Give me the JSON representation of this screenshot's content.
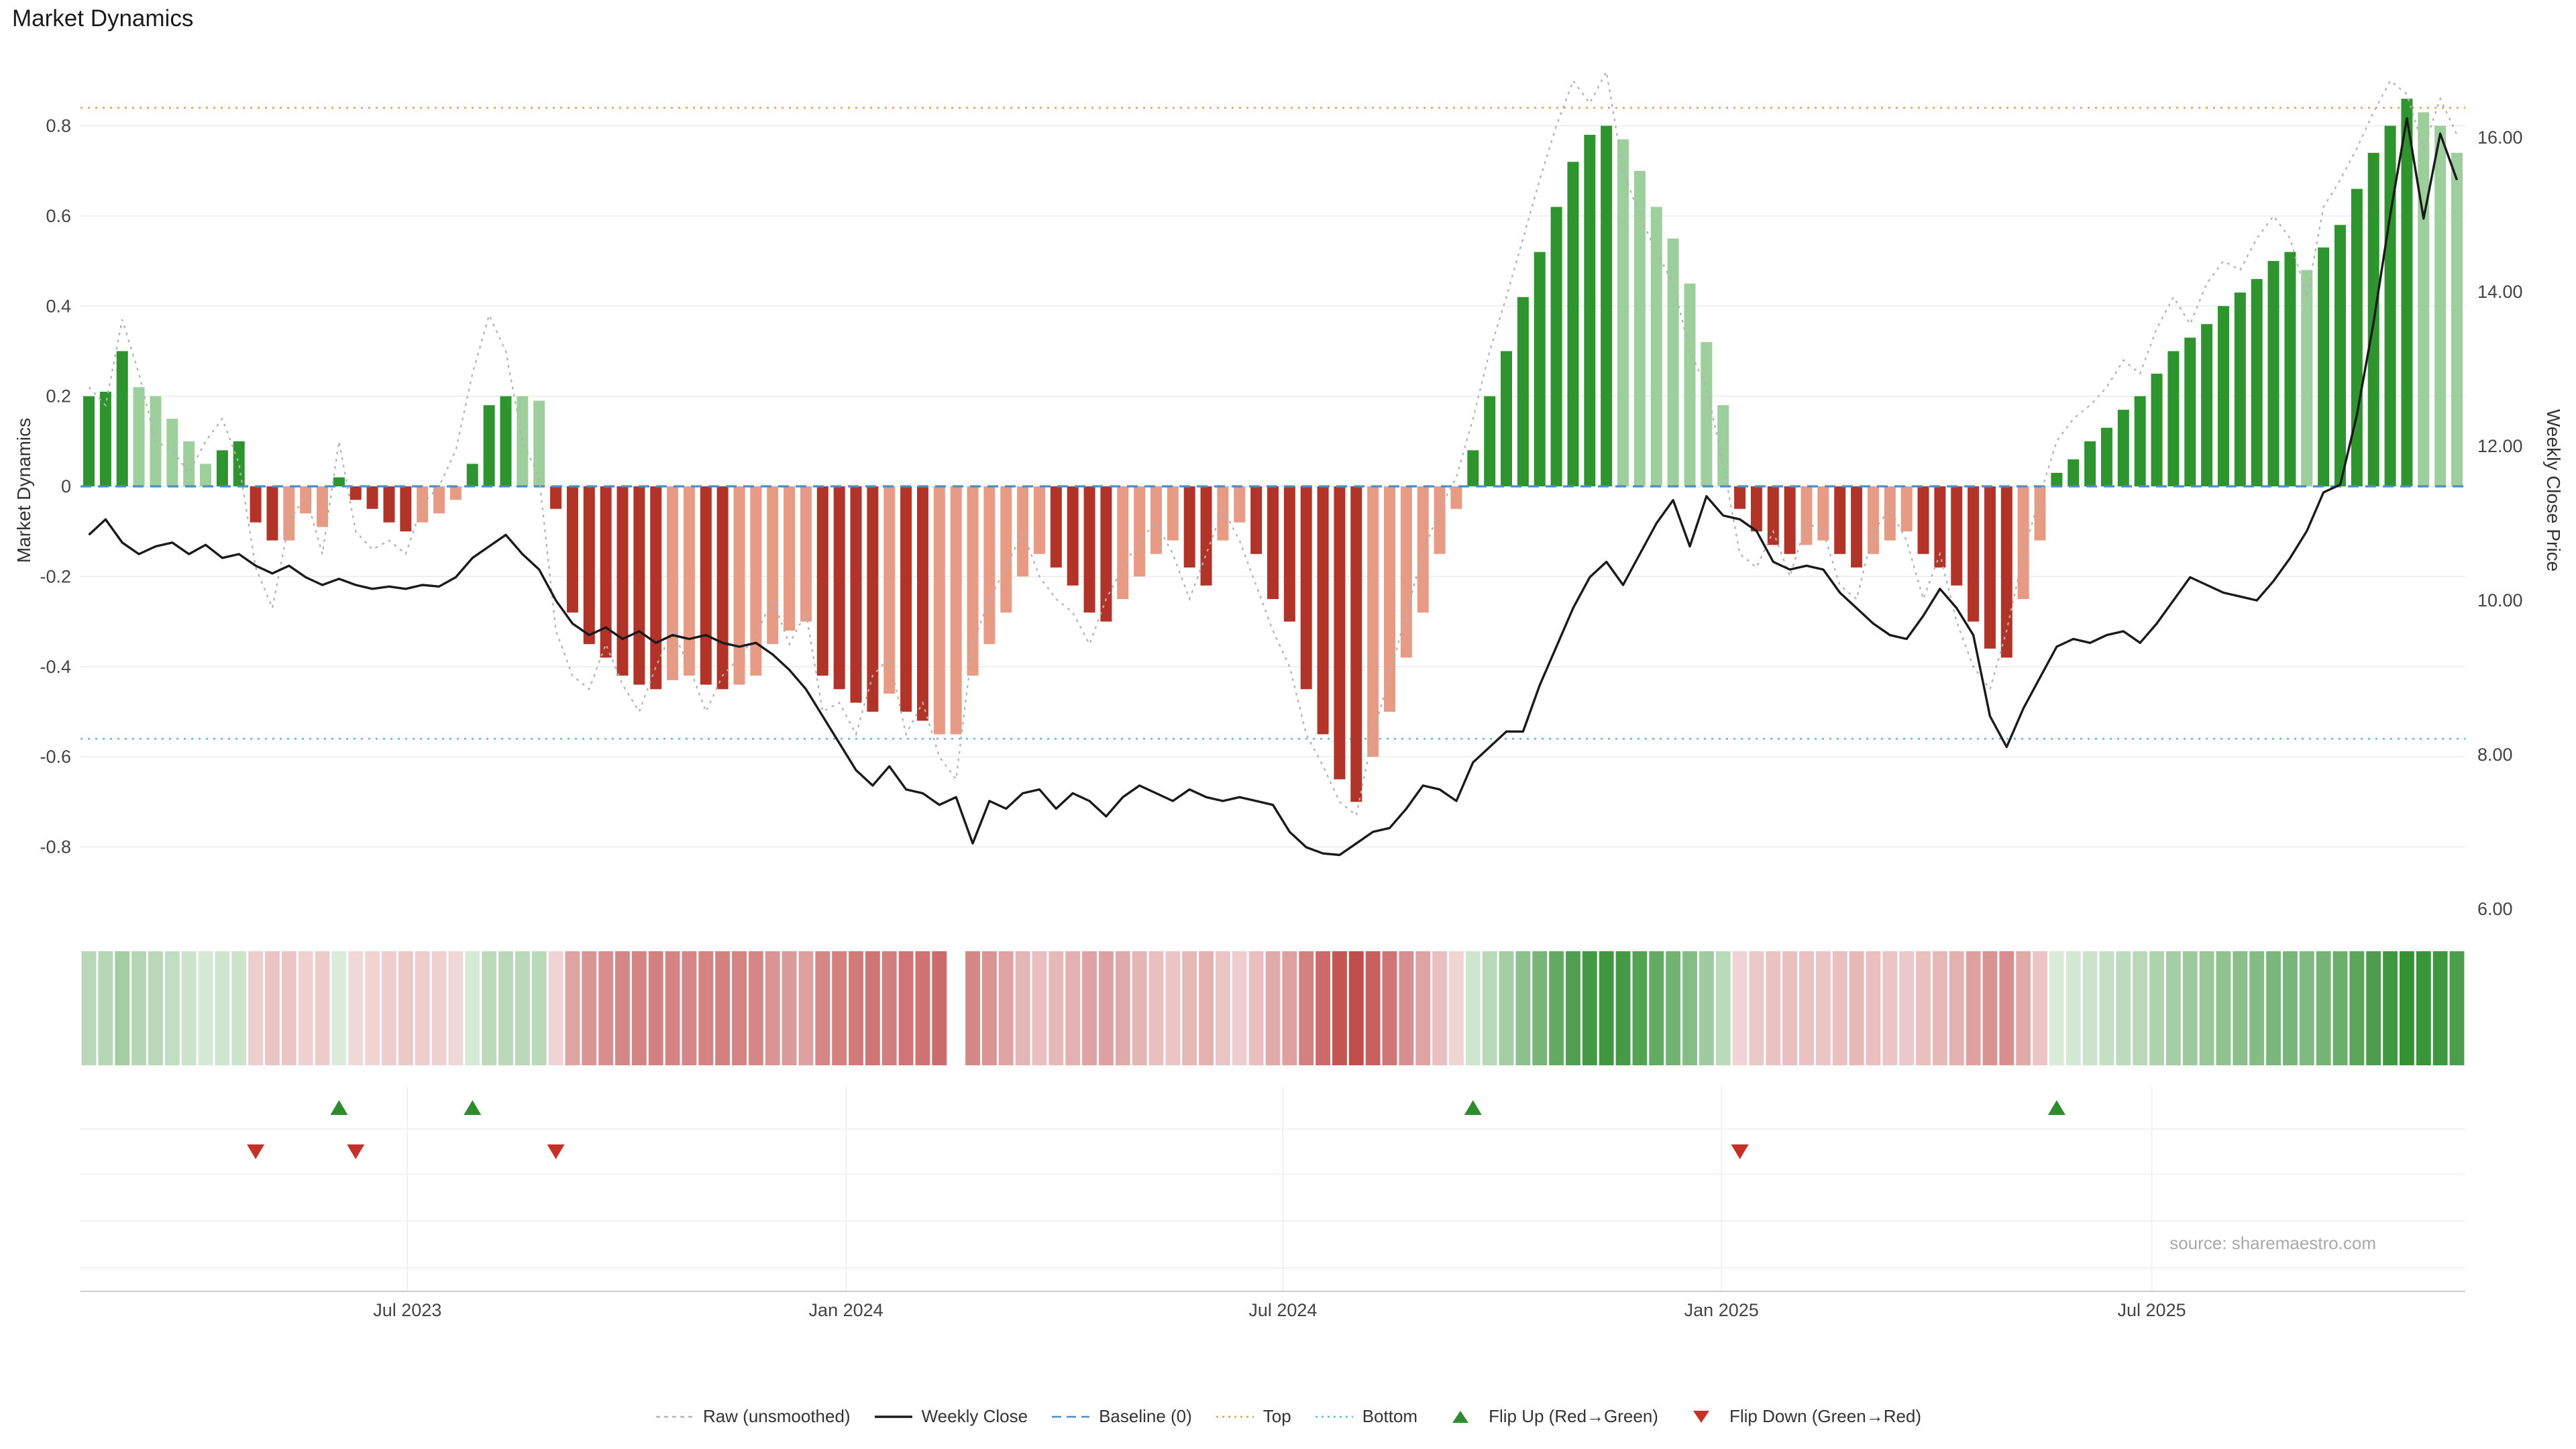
{
  "title": "Market Dynamics",
  "source_note": "source: sharemaestro.com",
  "axes": {
    "left_label": "Market Dynamics",
    "right_label": "Weekly Close Price"
  },
  "legend": [
    {
      "label": "Raw (unsmoothed)",
      "swatch": "dashed",
      "color_key": "raw"
    },
    {
      "label": "Weekly Close",
      "swatch": "solid",
      "color_key": "close"
    },
    {
      "label": "Baseline (0)",
      "swatch": "dash",
      "color_key": "baseline"
    },
    {
      "label": "Top",
      "swatch": "dotted",
      "color_key": "top"
    },
    {
      "label": "Bottom",
      "swatch": "dotted",
      "color_key": "bottom"
    },
    {
      "label": "Flip Up (Red→Green)",
      "swatch": "triangle-up",
      "color_key": "flip_up"
    },
    {
      "label": "Flip Down (Green→Red)",
      "swatch": "triangle-down",
      "color_key": "flip_down"
    }
  ],
  "colors": {
    "pos_dark": "#2e942e",
    "pos_light": "#9ccf9c",
    "neg_dark": "#b23327",
    "neg_light": "#e79a84",
    "close": "#1a1a1a",
    "raw": "#b3b3b3",
    "baseline": "#4a8fbf",
    "top": "#e0a04e",
    "bottom": "#58bfca",
    "flip_up": "#2e8b2e",
    "flip_down": "#c63127",
    "strip_pos": "#2c8c2c",
    "strip_neg": "#b22222",
    "grid": "#ebebeb",
    "axis_text": "#444444"
  },
  "chart_data": {
    "type": "bar+line",
    "title": "Market Dynamics",
    "weeks": 143,
    "x_ticks": [
      {
        "week": 19.1,
        "label": "Jul 2023"
      },
      {
        "week": 45.4,
        "label": "Jan 2024"
      },
      {
        "week": 71.6,
        "label": "Jul 2024"
      },
      {
        "week": 97.9,
        "label": "Jan 2025"
      },
      {
        "week": 123.7,
        "label": "Jul 2025"
      }
    ],
    "left_axis": {
      "label": "Market Dynamics",
      "ticks": [
        0.8,
        0.6,
        0.4,
        0.2,
        0,
        -0.2,
        -0.4,
        -0.6,
        -0.8
      ],
      "ylim": [
        -0.95,
        0.93
      ]
    },
    "right_axis": {
      "label": "Weekly Close Price",
      "ticks": [
        16,
        14,
        12,
        10,
        8,
        6
      ],
      "ylim": [
        5.9,
        16.8
      ]
    },
    "reference_lines": {
      "baseline": 0,
      "top": 0.84,
      "bottom": -0.56
    },
    "flip_up_weeks": [
      15,
      23,
      83,
      118
    ],
    "flip_down_weeks": [
      10,
      16,
      28,
      99
    ],
    "strip_gap_weeks": [
      52
    ],
    "series": {
      "dynamics": [
        0.2,
        0.21,
        0.3,
        0.22,
        0.2,
        0.15,
        0.1,
        0.05,
        0.08,
        0.1,
        -0.08,
        -0.12,
        -0.12,
        -0.06,
        -0.09,
        0.02,
        -0.03,
        -0.05,
        -0.08,
        -0.1,
        -0.08,
        -0.06,
        -0.03,
        0.05,
        0.18,
        0.2,
        0.2,
        0.19,
        -0.05,
        -0.28,
        -0.35,
        -0.38,
        -0.42,
        -0.44,
        -0.45,
        -0.43,
        -0.42,
        -0.44,
        -0.45,
        -0.44,
        -0.42,
        -0.35,
        -0.32,
        -0.3,
        -0.42,
        -0.45,
        -0.48,
        -0.5,
        -0.46,
        -0.5,
        -0.52,
        -0.55,
        -0.55,
        -0.42,
        -0.35,
        -0.28,
        -0.2,
        -0.15,
        -0.18,
        -0.22,
        -0.28,
        -0.3,
        -0.25,
        -0.2,
        -0.15,
        -0.12,
        -0.18,
        -0.22,
        -0.12,
        -0.08,
        -0.15,
        -0.25,
        -0.3,
        -0.45,
        -0.55,
        -0.65,
        -0.7,
        -0.6,
        -0.5,
        -0.38,
        -0.28,
        -0.15,
        -0.05,
        0.08,
        0.2,
        0.3,
        0.42,
        0.52,
        0.62,
        0.72,
        0.78,
        0.8,
        0.77,
        0.7,
        0.62,
        0.55,
        0.45,
        0.32,
        0.18,
        -0.05,
        -0.1,
        -0.13,
        -0.15,
        -0.13,
        -0.12,
        -0.15,
        -0.18,
        -0.15,
        -0.12,
        -0.1,
        -0.15,
        -0.18,
        -0.22,
        -0.3,
        -0.36,
        -0.38,
        -0.25,
        -0.12,
        0.03,
        0.06,
        0.1,
        0.13,
        0.17,
        0.2,
        0.25,
        0.3,
        0.33,
        0.36,
        0.4,
        0.43,
        0.46,
        0.5,
        0.52,
        0.48,
        0.53,
        0.58,
        0.66,
        0.74,
        0.8,
        0.86,
        0.83,
        0.8,
        0.74
      ],
      "shade_runs": [
        [
          3,
          "d"
        ],
        [
          5,
          "l"
        ],
        [
          4,
          "d"
        ],
        [
          3,
          "l"
        ],
        [
          5,
          "d"
        ],
        [
          3,
          "l"
        ],
        [
          3,
          "d"
        ],
        [
          2,
          "l"
        ],
        [
          7,
          "d"
        ],
        [
          2,
          "l"
        ],
        [
          2,
          "d"
        ],
        [
          5,
          "l"
        ],
        [
          4,
          "d"
        ],
        [
          1,
          "l"
        ],
        [
          2,
          "d"
        ],
        [
          7,
          "l"
        ],
        [
          4,
          "d"
        ],
        [
          4,
          "l"
        ],
        [
          2,
          "d"
        ],
        [
          2,
          "l"
        ],
        [
          7,
          "d"
        ],
        [
          6,
          "l"
        ],
        [
          9,
          "d"
        ],
        [
          7,
          "l"
        ],
        [
          4,
          "d"
        ],
        [
          2,
          "l"
        ],
        [
          2,
          "d"
        ],
        [
          3,
          "l"
        ],
        [
          6,
          "d"
        ],
        [
          2,
          "l"
        ],
        [
          15,
          "d"
        ],
        [
          1,
          "l"
        ],
        [
          6,
          "d"
        ],
        [
          3,
          "l"
        ]
      ],
      "raw": [
        0.22,
        0.18,
        0.37,
        0.25,
        0.1,
        0.08,
        0.03,
        0.1,
        0.15,
        0.05,
        -0.18,
        -0.27,
        -0.08,
        -0.02,
        -0.15,
        0.1,
        -0.1,
        -0.14,
        -0.12,
        -0.15,
        -0.04,
        0,
        0.08,
        0.25,
        0.38,
        0.3,
        0.1,
        0.02,
        -0.32,
        -0.42,
        -0.45,
        -0.35,
        -0.44,
        -0.5,
        -0.4,
        -0.32,
        -0.4,
        -0.5,
        -0.42,
        -0.38,
        -0.33,
        -0.25,
        -0.35,
        -0.28,
        -0.5,
        -0.48,
        -0.55,
        -0.42,
        -0.38,
        -0.55,
        -0.48,
        -0.6,
        -0.65,
        -0.35,
        -0.25,
        -0.18,
        -0.1,
        -0.2,
        -0.25,
        -0.28,
        -0.35,
        -0.25,
        -0.18,
        -0.12,
        -0.08,
        -0.15,
        -0.25,
        -0.15,
        -0.05,
        -0.12,
        -0.22,
        -0.32,
        -0.4,
        -0.55,
        -0.62,
        -0.7,
        -0.73,
        -0.55,
        -0.42,
        -0.28,
        -0.15,
        -0.05,
        0.02,
        0.15,
        0.3,
        0.42,
        0.55,
        0.68,
        0.8,
        0.9,
        0.85,
        0.92,
        0.7,
        0.6,
        0.52,
        0.45,
        0.3,
        0.22,
        0.05,
        -0.15,
        -0.18,
        -0.1,
        -0.2,
        -0.08,
        -0.1,
        -0.22,
        -0.25,
        -0.1,
        -0.05,
        -0.12,
        -0.25,
        -0.15,
        -0.3,
        -0.4,
        -0.45,
        -0.32,
        -0.15,
        -0.02,
        0.1,
        0.15,
        0.18,
        0.22,
        0.28,
        0.25,
        0.35,
        0.42,
        0.36,
        0.45,
        0.5,
        0.48,
        0.55,
        0.6,
        0.55,
        0.42,
        0.62,
        0.68,
        0.75,
        0.83,
        0.9,
        0.87,
        0.75,
        0.86,
        0.78
      ],
      "weekly_close": [
        10.85,
        11.05,
        10.75,
        10.6,
        10.7,
        10.75,
        10.6,
        10.72,
        10.55,
        10.6,
        10.45,
        10.35,
        10.45,
        10.3,
        10.2,
        10.28,
        10.2,
        10.15,
        10.18,
        10.15,
        10.2,
        10.18,
        10.3,
        10.55,
        10.7,
        10.85,
        10.6,
        10.4,
        10.0,
        9.7,
        9.55,
        9.65,
        9.5,
        9.6,
        9.45,
        9.55,
        9.5,
        9.55,
        9.45,
        9.4,
        9.45,
        9.3,
        9.1,
        8.85,
        8.5,
        8.15,
        7.8,
        7.6,
        7.85,
        7.55,
        7.5,
        7.35,
        7.45,
        6.85,
        7.4,
        7.3,
        7.5,
        7.55,
        7.3,
        7.5,
        7.4,
        7.2,
        7.45,
        7.6,
        7.5,
        7.4,
        7.55,
        7.45,
        7.4,
        7.45,
        7.4,
        7.35,
        7.0,
        6.8,
        6.72,
        6.7,
        6.85,
        7.0,
        7.05,
        7.3,
        7.6,
        7.55,
        7.4,
        7.9,
        8.1,
        8.3,
        8.3,
        8.9,
        9.4,
        9.9,
        10.3,
        10.5,
        10.2,
        10.6,
        11.0,
        11.3,
        10.7,
        11.35,
        11.1,
        11.05,
        10.9,
        10.5,
        10.4,
        10.45,
        10.4,
        10.1,
        9.9,
        9.7,
        9.55,
        9.5,
        9.8,
        10.15,
        9.9,
        9.55,
        8.5,
        8.1,
        8.6,
        9.0,
        9.4,
        9.5,
        9.45,
        9.55,
        9.6,
        9.45,
        9.7,
        10.0,
        10.3,
        10.2,
        10.1,
        10.05,
        10.0,
        10.25,
        10.55,
        10.9,
        11.4,
        11.5,
        12.4,
        13.6,
        15.0,
        16.25,
        14.95,
        16.05,
        15.45
      ]
    }
  }
}
